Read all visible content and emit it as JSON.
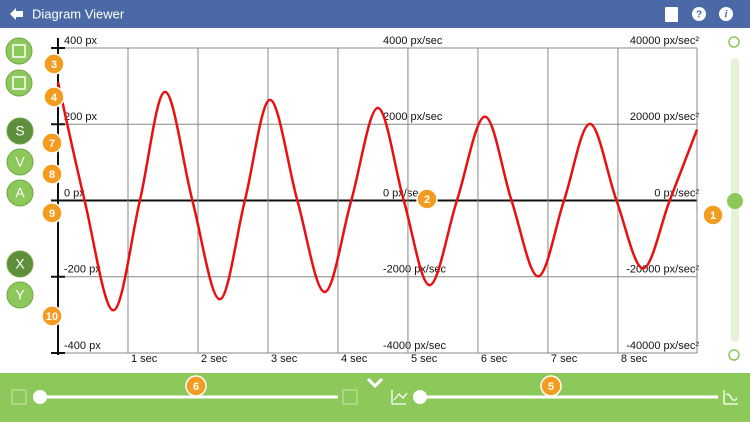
{
  "header": {
    "title": "Diagram Viewer"
  },
  "sidebar": {
    "buttons": [
      "S",
      "V",
      "A",
      "X",
      "Y"
    ]
  },
  "badges": [
    3,
    4,
    7,
    8,
    9,
    10,
    2,
    1,
    6,
    5
  ],
  "chart_data": {
    "type": "line",
    "color": "#e81010",
    "x": [
      0,
      0.38,
      0.79,
      1.17,
      1.53,
      1.92,
      2.31,
      2.67,
      3.03,
      3.42,
      3.81,
      4.19,
      4.57,
      4.94,
      5.31,
      5.7,
      6.1,
      6.48,
      6.86,
      7.23,
      7.6,
      7.98,
      8.36,
      8.74,
      9.13
    ],
    "values": [
      311,
      0,
      -288,
      0,
      285,
      0,
      -259,
      0,
      264,
      0,
      -240,
      0,
      243,
      0,
      -222,
      0,
      220,
      0,
      -199,
      0,
      201,
      0,
      -178,
      0,
      186
    ],
    "xlim": [
      0,
      9.13
    ],
    "xticks": [
      {
        "value": 1,
        "label": "1 sec"
      },
      {
        "value": 2,
        "label": "2 sec"
      },
      {
        "value": 3,
        "label": "3 sec"
      },
      {
        "value": 4,
        "label": "4 sec"
      },
      {
        "value": 5,
        "label": "5 sec"
      },
      {
        "value": 6,
        "label": "6 sec"
      },
      {
        "value": 7,
        "label": "7 sec"
      },
      {
        "value": 8,
        "label": "8 sec"
      }
    ],
    "ylim": [
      -400,
      400
    ],
    "yticks": [
      {
        "value": 400,
        "label": "400 px"
      },
      {
        "value": 200,
        "label": "200 px"
      },
      {
        "value": 0,
        "label": "0 px"
      },
      {
        "value": -200,
        "label": "-200 px"
      },
      {
        "value": -400,
        "label": "-400 px"
      }
    ],
    "y2lim": [
      -4000,
      4000
    ],
    "y2ticks": [
      {
        "value": 4000,
        "label": "4000 px/sec"
      },
      {
        "value": 2000,
        "label": "2000 px/sec"
      },
      {
        "value": 0,
        "label": "0 px/sec"
      },
      {
        "value": -2000,
        "label": "-2000 px/sec"
      },
      {
        "value": -4000,
        "label": "-4000 px/sec"
      }
    ],
    "y3lim": [
      -40000,
      40000
    ],
    "y3ticks": [
      {
        "value": 40000,
        "label": "40000 px/sec²"
      },
      {
        "value": 20000,
        "label": "20000 px/sec²"
      },
      {
        "value": 0,
        "label": "0 px/sec²"
      },
      {
        "value": -20000,
        "label": "-20000 px/sec²"
      },
      {
        "value": -40000,
        "label": "-40000 px/sec²"
      }
    ],
    "grid": true
  }
}
